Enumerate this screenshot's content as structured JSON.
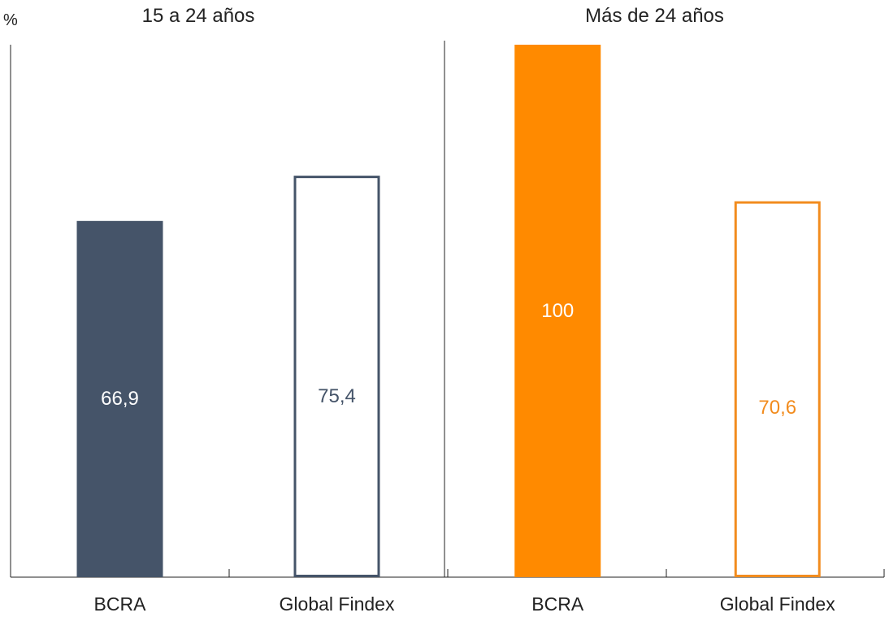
{
  "chart_data": {
    "type": "bar",
    "unit_label": "%",
    "ylim": [
      0,
      100
    ],
    "panels": [
      {
        "title": "15 a 24 años",
        "bars": [
          {
            "category": "BCRA",
            "value": 66.9,
            "label": "66,9",
            "style": "filled",
            "color": "#455469",
            "label_color": "#ffffff"
          },
          {
            "category": "Global Findex",
            "value": 75.4,
            "label": "75,4",
            "style": "outline",
            "color": "#455469",
            "label_color": "#455469"
          }
        ]
      },
      {
        "title": "Más de 24 años",
        "bars": [
          {
            "category": "BCRA",
            "value": 100,
            "label": "100",
            "style": "filled",
            "color": "#ff8a00",
            "label_color": "#ffffff"
          },
          {
            "category": "Global Findex",
            "value": 70.6,
            "label": "70,6",
            "style": "outline",
            "color": "#f28c1e",
            "label_color": "#f28c1e"
          }
        ]
      }
    ]
  }
}
